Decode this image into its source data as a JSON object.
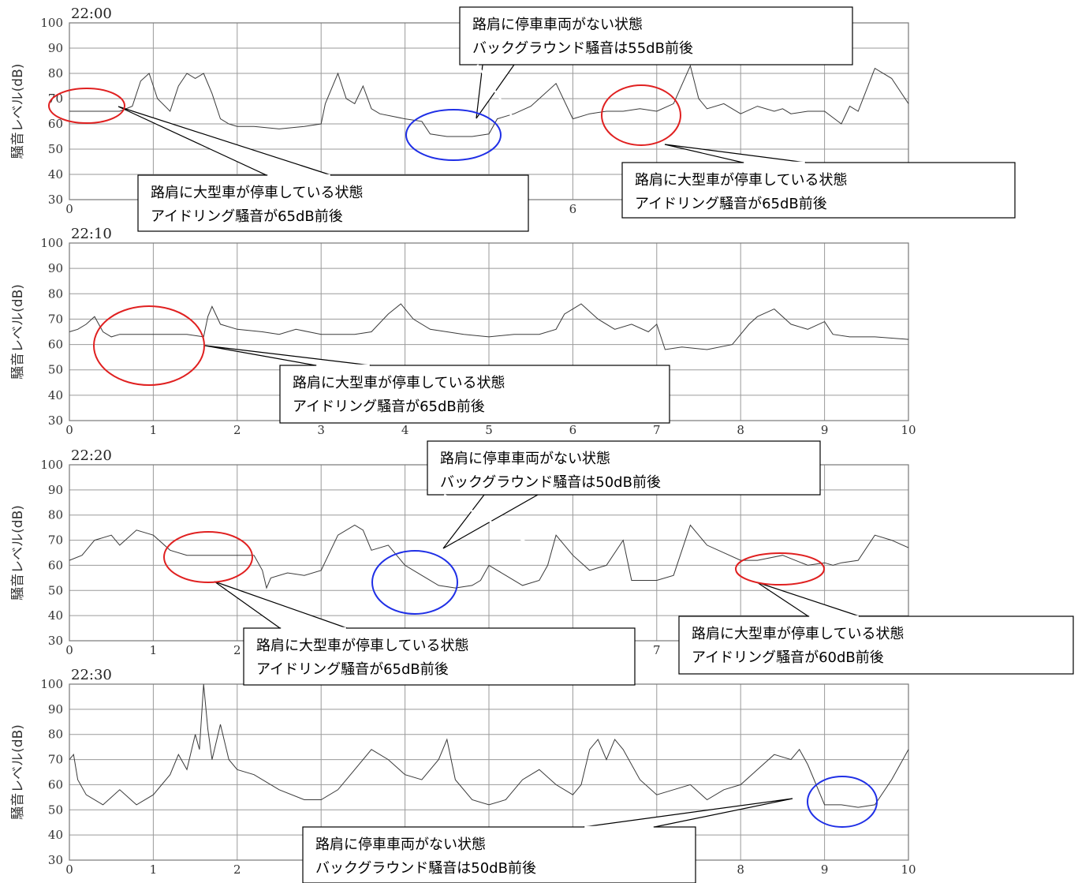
{
  "colors": {
    "red_marker": "#e02020",
    "blue_marker": "#1f2fe6",
    "trace": "#3a3a3a"
  },
  "chart_data": [
    {
      "type": "line",
      "title": "22:00",
      "ylabel": "騒音レベル(dB)",
      "xlim": [
        0,
        10
      ],
      "ylim": [
        30,
        100
      ],
      "x_ticks": [
        "0",
        "6"
      ],
      "y_ticks": [
        "30",
        "40",
        "50",
        "60",
        "70",
        "80",
        "90",
        "100"
      ],
      "x": [
        0,
        0.2,
        0.4,
        0.6,
        0.75,
        0.85,
        0.95,
        1.05,
        1.2,
        1.3,
        1.4,
        1.5,
        1.6,
        1.7,
        1.8,
        1.9,
        2.0,
        2.2,
        2.5,
        2.8,
        3.0,
        3.05,
        3.2,
        3.3,
        3.4,
        3.5,
        3.6,
        3.7,
        3.85,
        4.0,
        4.2,
        4.3,
        4.5,
        4.8,
        5.0,
        5.1,
        5.3,
        5.5,
        5.8,
        6.0,
        6.2,
        6.4,
        6.6,
        6.8,
        7.0,
        7.2,
        7.4,
        7.5,
        7.6,
        7.8,
        8.0,
        8.2,
        8.4,
        8.5,
        8.6,
        8.8,
        9.0,
        9.2,
        9.3,
        9.4,
        9.6,
        9.8,
        10.0
      ],
      "y": [
        65,
        65,
        65,
        65,
        67,
        77,
        80,
        70,
        65,
        75,
        80,
        78,
        80,
        72,
        62,
        60,
        59,
        59,
        58,
        59,
        60,
        68,
        80,
        70,
        68,
        75,
        66,
        64,
        63,
        62,
        61,
        56,
        55,
        55,
        56,
        62,
        64,
        67,
        76,
        62,
        64,
        65,
        65,
        66,
        65,
        68,
        83,
        70,
        66,
        68,
        64,
        67,
        65,
        66,
        64,
        65,
        65,
        60,
        67,
        65,
        82,
        78,
        68
      ],
      "annotations": [
        {
          "text": "路肩に停車車両がない状態\nバックグラウンド騒音は55dB前後"
        },
        {
          "text": "路肩に大型車が停車している状態\nアイドリング騒音が65dB前後"
        },
        {
          "text": "路肩に大型車が停車している状態\nアイドリング騒音が65dB前後"
        }
      ]
    },
    {
      "type": "line",
      "title": "22:10",
      "ylabel": "騒音レベル(dB)",
      "xlim": [
        0,
        10
      ],
      "ylim": [
        30,
        100
      ],
      "x_ticks": [
        "0",
        "1",
        "2",
        "3",
        "4",
        "5",
        "6",
        "7",
        "8",
        "9",
        "10"
      ],
      "y_ticks": [
        "30",
        "40",
        "50",
        "60",
        "70",
        "80",
        "90",
        "100"
      ],
      "x": [
        0,
        0.1,
        0.2,
        0.3,
        0.4,
        0.5,
        0.6,
        0.8,
        1.0,
        1.2,
        1.4,
        1.6,
        1.65,
        1.7,
        1.8,
        2.0,
        2.3,
        2.5,
        2.7,
        3.0,
        3.2,
        3.4,
        3.6,
        3.8,
        3.95,
        4.1,
        4.3,
        4.5,
        4.7,
        5.0,
        5.3,
        5.6,
        5.8,
        5.9,
        6.0,
        6.1,
        6.3,
        6.5,
        6.7,
        6.9,
        7.0,
        7.1,
        7.3,
        7.6,
        7.9,
        8.0,
        8.1,
        8.2,
        8.4,
        8.6,
        8.8,
        9.0,
        9.1,
        9.3,
        9.6,
        10.0
      ],
      "y": [
        65,
        66,
        68,
        71,
        65,
        63,
        64,
        64,
        64,
        64,
        64,
        63,
        71,
        75,
        68,
        66,
        65,
        64,
        66,
        64,
        64,
        64,
        65,
        72,
        76,
        70,
        66,
        65,
        64,
        63,
        64,
        64,
        66,
        72,
        74,
        76,
        70,
        66,
        68,
        65,
        68,
        58,
        59,
        58,
        60,
        64,
        68,
        71,
        74,
        68,
        66,
        69,
        64,
        63,
        63,
        62
      ],
      "annotations": [
        {
          "text": "路肩に大型車が停車している状態\nアイドリング騒音が65dB前後"
        }
      ]
    },
    {
      "type": "line",
      "title": "22:20",
      "ylabel": "騒音レベル(dB)",
      "xlim": [
        0,
        10
      ],
      "ylim": [
        30,
        100
      ],
      "x_ticks": [
        "0",
        "1",
        "2",
        "7"
      ],
      "y_ticks": [
        "30",
        "40",
        "50",
        "60",
        "70",
        "80",
        "90",
        "100"
      ],
      "x": [
        0,
        0.15,
        0.3,
        0.5,
        0.6,
        0.8,
        1.0,
        1.2,
        1.4,
        1.5,
        1.6,
        1.8,
        2.0,
        2.2,
        2.3,
        2.35,
        2.4,
        2.6,
        2.8,
        3.0,
        3.2,
        3.4,
        3.5,
        3.6,
        3.8,
        4.0,
        4.2,
        4.4,
        4.6,
        4.8,
        4.9,
        5.0,
        5.2,
        5.4,
        5.6,
        5.7,
        5.8,
        6.0,
        6.2,
        6.4,
        6.6,
        6.7,
        6.8,
        7.0,
        7.2,
        7.4,
        7.6,
        8.0,
        8.2,
        8.5,
        8.8,
        9.0,
        9.1,
        9.2,
        9.4,
        9.6,
        9.8,
        10.0
      ],
      "y": [
        62,
        64,
        70,
        72,
        68,
        74,
        72,
        66,
        64,
        64,
        64,
        64,
        64,
        64,
        58,
        51,
        55,
        57,
        56,
        58,
        72,
        76,
        74,
        66,
        68,
        60,
        56,
        52,
        51,
        52,
        54,
        60,
        56,
        52,
        54,
        60,
        72,
        64,
        58,
        60,
        70,
        54,
        54,
        54,
        56,
        76,
        68,
        62,
        62,
        64,
        60,
        61,
        60,
        61,
        62,
        72,
        70,
        67
      ],
      "annotations": [
        {
          "text": "路肩に停車車両がない状態\nバックグラウンド騒音は50dB前後"
        },
        {
          "text": "路肩に大型車が停車している状態\nアイドリング騒音が65dB前後"
        },
        {
          "text": "路肩に大型車が停車している状態\nアイドリング騒音が60dB前後"
        }
      ]
    },
    {
      "type": "line",
      "title": "22:30",
      "ylabel": "騒音レベル(dB)",
      "xlim": [
        0,
        10
      ],
      "ylim": [
        30,
        100
      ],
      "x_ticks": [
        "0",
        "1",
        "2",
        "8",
        "9",
        "10"
      ],
      "y_ticks": [
        "30",
        "40",
        "50",
        "60",
        "70",
        "80",
        "90",
        "100"
      ],
      "x": [
        0,
        0.05,
        0.1,
        0.2,
        0.4,
        0.6,
        0.8,
        1.0,
        1.2,
        1.3,
        1.4,
        1.5,
        1.55,
        1.6,
        1.65,
        1.7,
        1.8,
        1.9,
        2.0,
        2.2,
        2.5,
        2.8,
        3.0,
        3.2,
        3.4,
        3.6,
        3.8,
        4.0,
        4.2,
        4.4,
        4.5,
        4.6,
        4.8,
        5.0,
        5.2,
        5.4,
        5.6,
        5.8,
        6.0,
        6.1,
        6.2,
        6.3,
        6.4,
        6.5,
        6.6,
        6.8,
        7.0,
        7.2,
        7.4,
        7.6,
        7.8,
        8.0,
        8.2,
        8.4,
        8.6,
        8.7,
        8.8,
        9.0,
        9.2,
        9.4,
        9.6,
        9.8,
        10.0
      ],
      "y": [
        70,
        72,
        62,
        56,
        52,
        58,
        52,
        56,
        64,
        72,
        66,
        80,
        74,
        100,
        82,
        70,
        84,
        70,
        66,
        64,
        58,
        54,
        54,
        58,
        66,
        74,
        70,
        64,
        62,
        70,
        78,
        62,
        54,
        52,
        54,
        62,
        66,
        60,
        56,
        60,
        74,
        78,
        70,
        78,
        74,
        62,
        56,
        58,
        60,
        54,
        58,
        60,
        66,
        72,
        70,
        74,
        68,
        52,
        52,
        51,
        52,
        62,
        74
      ],
      "annotations": [
        {
          "text": "路肩に停車車両がない状態\nバックグラウンド騒音は50dB前後"
        }
      ]
    }
  ]
}
